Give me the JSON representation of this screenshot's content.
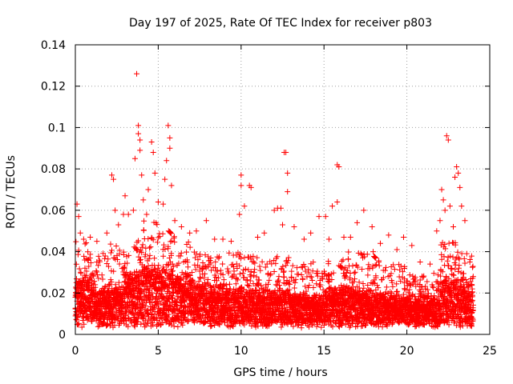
{
  "chart_data": {
    "type": "scatter",
    "title": "Day 197 of 2025, Rate Of TEC Index for receiver p803",
    "xlabel": "GPS time / hours",
    "ylabel": "ROTI / TECUs",
    "xlim": [
      0,
      25
    ],
    "ylim": [
      0,
      0.14
    ],
    "xticks": [
      0,
      5,
      10,
      15,
      20,
      25
    ],
    "yticks": [
      0,
      0.02,
      0.04,
      0.06,
      0.08,
      0.1,
      0.12,
      0.14
    ],
    "xtick_labels": [
      "0",
      "5",
      "10",
      "15",
      "20",
      "25"
    ],
    "ytick_labels": [
      "0",
      "0.02",
      "0.04",
      "0.06",
      "0.08",
      "0.1",
      "0.12",
      "0.14"
    ],
    "grid": true,
    "marker": "+",
    "color": "#ff0000",
    "series": [
      {
        "name": "ROTI",
        "points": [
          [
            0.1,
            0.063
          ],
          [
            0.2,
            0.057
          ],
          [
            0.3,
            0.049
          ],
          [
            0.5,
            0.046
          ],
          [
            0.9,
            0.047
          ],
          [
            1.3,
            0.045
          ],
          [
            1.9,
            0.049
          ],
          [
            2.2,
            0.077
          ],
          [
            2.3,
            0.075
          ],
          [
            2.4,
            0.06
          ],
          [
            2.6,
            0.053
          ],
          [
            2.9,
            0.058
          ],
          [
            3.0,
            0.067
          ],
          [
            3.2,
            0.058
          ],
          [
            3.5,
            0.06
          ],
          [
            3.6,
            0.085
          ],
          [
            3.7,
            0.126
          ],
          [
            3.8,
            0.101
          ],
          [
            3.8,
            0.097
          ],
          [
            3.9,
            0.094
          ],
          [
            3.9,
            0.089
          ],
          [
            4.0,
            0.077
          ],
          [
            4.1,
            0.065
          ],
          [
            4.3,
            0.058
          ],
          [
            4.4,
            0.07
          ],
          [
            4.6,
            0.093
          ],
          [
            4.7,
            0.088
          ],
          [
            4.8,
            0.078
          ],
          [
            5.0,
            0.064
          ],
          [
            5.3,
            0.063
          ],
          [
            5.4,
            0.075
          ],
          [
            5.5,
            0.084
          ],
          [
            5.6,
            0.101
          ],
          [
            5.7,
            0.095
          ],
          [
            5.7,
            0.09
          ],
          [
            5.8,
            0.072
          ],
          [
            6.0,
            0.055
          ],
          [
            6.4,
            0.052
          ],
          [
            6.9,
            0.049
          ],
          [
            7.3,
            0.05
          ],
          [
            7.9,
            0.055
          ],
          [
            8.4,
            0.046
          ],
          [
            8.9,
            0.046
          ],
          [
            9.4,
            0.045
          ],
          [
            9.9,
            0.058
          ],
          [
            10.0,
            0.077
          ],
          [
            10.0,
            0.072
          ],
          [
            10.2,
            0.062
          ],
          [
            10.5,
            0.072
          ],
          [
            10.6,
            0.071
          ],
          [
            11.0,
            0.047
          ],
          [
            11.4,
            0.049
          ],
          [
            12.0,
            0.06
          ],
          [
            12.2,
            0.061
          ],
          [
            12.4,
            0.061
          ],
          [
            12.5,
            0.053
          ],
          [
            12.6,
            0.088
          ],
          [
            12.7,
            0.088
          ],
          [
            12.8,
            0.078
          ],
          [
            12.8,
            0.069
          ],
          [
            13.2,
            0.052
          ],
          [
            13.8,
            0.046
          ],
          [
            14.2,
            0.049
          ],
          [
            14.7,
            0.057
          ],
          [
            15.1,
            0.057
          ],
          [
            15.3,
            0.046
          ],
          [
            15.5,
            0.062
          ],
          [
            15.8,
            0.082
          ],
          [
            15.9,
            0.081
          ],
          [
            15.8,
            0.064
          ],
          [
            16.2,
            0.047
          ],
          [
            16.6,
            0.047
          ],
          [
            17.0,
            0.054
          ],
          [
            17.4,
            0.06
          ],
          [
            17.9,
            0.052
          ],
          [
            18.4,
            0.044
          ],
          [
            18.9,
            0.048
          ],
          [
            19.4,
            0.041
          ],
          [
            19.8,
            0.047
          ],
          [
            20.3,
            0.043
          ],
          [
            20.8,
            0.035
          ],
          [
            21.4,
            0.034
          ],
          [
            21.8,
            0.05
          ],
          [
            22.0,
            0.055
          ],
          [
            22.1,
            0.07
          ],
          [
            22.2,
            0.065
          ],
          [
            22.3,
            0.06
          ],
          [
            22.4,
            0.096
          ],
          [
            22.5,
            0.094
          ],
          [
            22.6,
            0.062
          ],
          [
            22.8,
            0.052
          ],
          [
            22.9,
            0.076
          ],
          [
            23.0,
            0.081
          ],
          [
            23.1,
            0.078
          ],
          [
            23.2,
            0.071
          ],
          [
            23.3,
            0.062
          ],
          [
            23.5,
            0.055
          ],
          [
            23.8,
            0.035
          ],
          [
            24.0,
            0.028
          ]
        ],
        "dense_band": {
          "description": "continuous cloud of ROTI values sampled every few minutes",
          "x_range": [
            0,
            24
          ],
          "y_min": 0.003,
          "y_max_by_hour": [
            0.045,
            0.04,
            0.045,
            0.05,
            0.055,
            0.05,
            0.045,
            0.04,
            0.04,
            0.04,
            0.038,
            0.036,
            0.038,
            0.035,
            0.035,
            0.04,
            0.04,
            0.04,
            0.038,
            0.034,
            0.03,
            0.03,
            0.045,
            0.04,
            0.035
          ],
          "y_typical_by_hour": [
            0.018,
            0.015,
            0.016,
            0.02,
            0.023,
            0.022,
            0.02,
            0.017,
            0.016,
            0.015,
            0.014,
            0.014,
            0.014,
            0.013,
            0.012,
            0.014,
            0.015,
            0.014,
            0.013,
            0.012,
            0.012,
            0.012,
            0.018,
            0.016,
            0.014
          ]
        }
      }
    ]
  }
}
